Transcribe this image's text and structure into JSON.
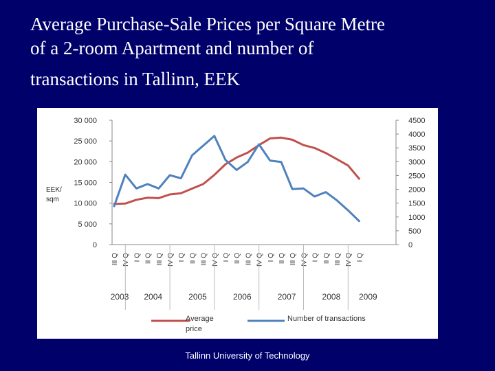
{
  "title_lines": [
    "Average Purchase-Sale Prices per Square Metre",
    "of a 2-room Apartment and number of",
    "transactions in Tallinn, EEK"
  ],
  "footer": "Tallinn University of Technology",
  "chart_data": {
    "type": "line",
    "y_left_label": [
      "EEK/",
      "sqm"
    ],
    "y_left_ticks": [
      "30 000",
      "25 000",
      "20 000",
      "15 000",
      "10 000",
      "5 000",
      "0"
    ],
    "y_left_values": [
      30000,
      25000,
      20000,
      15000,
      10000,
      5000,
      0
    ],
    "y_left_range": [
      0,
      30000
    ],
    "y_right_ticks": [
      "4500",
      "4000",
      "3500",
      "3000",
      "2500",
      "2000",
      "1500",
      "1000",
      "500",
      "0"
    ],
    "y_right_values": [
      4500,
      4000,
      3500,
      3000,
      2500,
      2000,
      1500,
      1000,
      500,
      0
    ],
    "y_right_range": [
      0,
      4500
    ],
    "quarters": [
      "III Q",
      "IV Q",
      "I Q",
      "II Q",
      "III Q",
      "IV Q",
      "I Q",
      "II Q",
      "III Q",
      "IV Q",
      "I Q",
      "II Q",
      "III Q",
      "IV Q",
      "I Q",
      "II Q",
      "III Q",
      "IV Q",
      "I Q",
      "II Q",
      "III Q",
      "IV Q",
      "I Q"
    ],
    "years": [
      "2003",
      "2004",
      "2005",
      "2006",
      "2007",
      "2008",
      "2009"
    ],
    "year_quarter_index": [
      0.5,
      3.5,
      7.5,
      11.5,
      15.5,
      19.5,
      22.8
    ],
    "series": [
      {
        "name": "Average price",
        "color": "#c0504d",
        "axis": "left",
        "values": [
          9800,
          9900,
          10800,
          11300,
          11200,
          12100,
          12400,
          13500,
          14600,
          16800,
          19400,
          21000,
          22200,
          24000,
          25600,
          25800,
          25300,
          24000,
          23300,
          22100,
          20600,
          19100,
          15900
        ]
      },
      {
        "name": "Number of transactions",
        "color": "#4f81bd",
        "axis": "right",
        "values": [
          1390,
          2530,
          2030,
          2190,
          2030,
          2510,
          2400,
          3230,
          3580,
          3930,
          3060,
          2700,
          2990,
          3630,
          3040,
          2990,
          2010,
          2030,
          1740,
          1900,
          1600,
          1240,
          850
        ]
      }
    ],
    "legend": [
      "Average price",
      "Number of transactions"
    ],
    "legend_position": "bottom"
  }
}
